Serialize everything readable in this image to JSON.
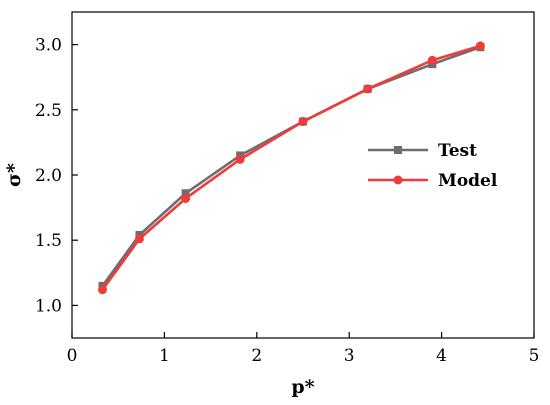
{
  "chart_data": {
    "type": "line",
    "xlabel": "p*",
    "ylabel": "σ*",
    "xlim": [
      0,
      5
    ],
    "ylim": [
      0.75,
      3.25
    ],
    "xticks": [
      "0",
      "1",
      "2",
      "3",
      "4",
      "5"
    ],
    "yticks": [
      "1.0",
      "1.5",
      "2.0",
      "2.5",
      "3.0"
    ],
    "legend_position": "right",
    "grid": false,
    "series": [
      {
        "name": "Test",
        "color": "#6e6e6e",
        "marker": "square",
        "x": [
          0.33,
          0.73,
          1.23,
          1.82,
          2.5,
          3.2,
          3.9,
          4.42
        ],
        "y": [
          1.15,
          1.54,
          1.86,
          2.15,
          2.41,
          2.66,
          2.85,
          2.98
        ]
      },
      {
        "name": "Model",
        "color": "#ef3b3b",
        "marker": "circle",
        "x": [
          0.33,
          0.73,
          1.23,
          1.82,
          2.5,
          3.2,
          3.9,
          4.42
        ],
        "y": [
          1.12,
          1.51,
          1.82,
          2.12,
          2.41,
          2.66,
          2.88,
          2.99
        ]
      }
    ]
  }
}
